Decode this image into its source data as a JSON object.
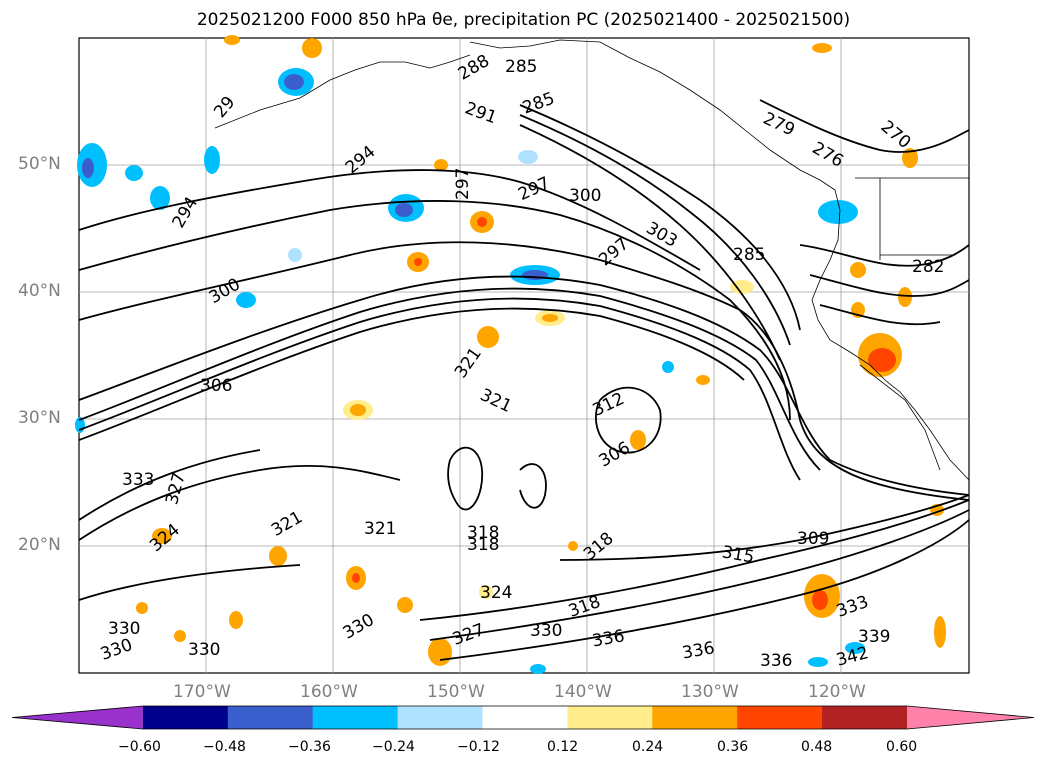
{
  "title": "2025021200 F000 850 hPa θe, precipitation PC (2025021400 - 2025021500)",
  "lat_labels": [
    "50°N",
    "40°N",
    "30°N",
    "20°N"
  ],
  "lon_labels": [
    "170°W",
    "160°W",
    "150°W",
    "140°W",
    "130°W",
    "120°W"
  ],
  "colorbar": {
    "ticks": [
      "−0.60",
      "−0.48",
      "−0.36",
      "−0.24",
      "−0.12",
      "0.12",
      "0.24",
      "0.36",
      "0.48",
      "0.60"
    ],
    "colors": [
      "#9932cc",
      "#00008b",
      "#3a5fcd",
      "#00bfff",
      "#b0e2ff",
      "#ffffff",
      "#ffec8b",
      "#ffa500",
      "#ff4500",
      "#b22222",
      "#ff82ab"
    ]
  },
  "contour_labels": [
    {
      "t": "288"
    },
    {
      "t": "285"
    },
    {
      "t": "285"
    },
    {
      "t": "291"
    },
    {
      "t": "294"
    },
    {
      "t": "294"
    },
    {
      "t": "297"
    },
    {
      "t": "297"
    },
    {
      "t": "300"
    },
    {
      "t": "297"
    },
    {
      "t": "303"
    },
    {
      "t": "300"
    },
    {
      "t": "279"
    },
    {
      "t": "276"
    },
    {
      "t": "270"
    },
    {
      "t": "285"
    },
    {
      "t": "282"
    },
    {
      "t": "306"
    },
    {
      "t": "321"
    },
    {
      "t": "321"
    },
    {
      "t": "312"
    },
    {
      "t": "306"
    },
    {
      "t": "333"
    },
    {
      "t": "327"
    },
    {
      "t": "324"
    },
    {
      "t": "321"
    },
    {
      "t": "321"
    },
    {
      "t": "318"
    },
    {
      "t": "318"
    },
    {
      "t": "318"
    },
    {
      "t": "315"
    },
    {
      "t": "309"
    },
    {
      "t": "324"
    },
    {
      "t": "318"
    },
    {
      "t": "330"
    },
    {
      "t": "336"
    },
    {
      "t": "336"
    },
    {
      "t": "336"
    },
    {
      "t": "333"
    },
    {
      "t": "339"
    },
    {
      "t": "342"
    },
    {
      "t": "330"
    },
    {
      "t": "330"
    },
    {
      "t": "330"
    },
    {
      "t": "330"
    },
    {
      "t": "327"
    },
    {
      "t": "29"
    }
  ]
}
